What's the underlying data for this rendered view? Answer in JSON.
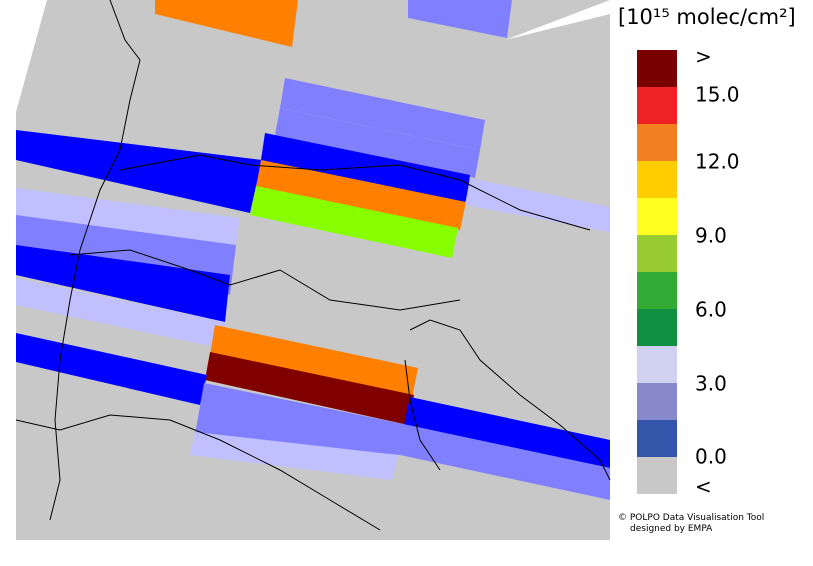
{
  "legend": {
    "title": "[10¹⁵ molec/cm²]",
    "labels": [
      ">",
      "15.0",
      "12.0",
      "9.0",
      "6.0",
      "3.0",
      "0.0",
      "<"
    ],
    "colors": [
      "#7a0000",
      "#ee2222",
      "#f08020",
      "#ffcc00",
      "#ffff20",
      "#99cc33",
      "#33aa33",
      "#109040",
      "#d0d0f0",
      "#8888cc",
      "#3355aa",
      "#c8c8c8"
    ]
  },
  "credit": [
    "© POLPO Data Visualisation Tool",
    "designed by EMPA"
  ]
}
